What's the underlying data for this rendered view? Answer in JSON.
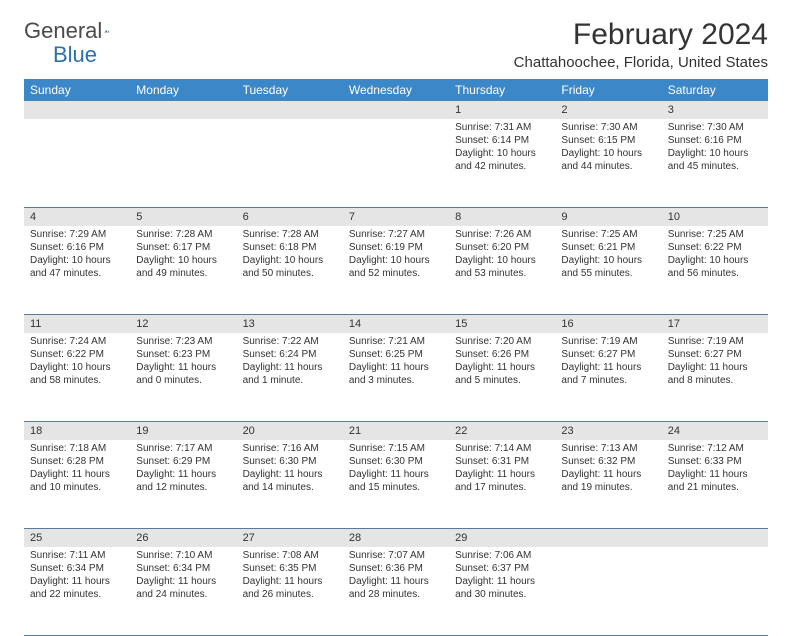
{
  "logo": {
    "text_general": "General",
    "text_blue": "Blue"
  },
  "title": "February 2024",
  "location": "Chattahoochee, Florida, United States",
  "colors": {
    "header_bg": "#3b87c8",
    "header_text": "#ffffff",
    "daynum_bg": "#e5e5e5",
    "week_border": "#5a7a9a",
    "body_text": "#333333",
    "logo_blue": "#2f6fa7"
  },
  "day_names": [
    "Sunday",
    "Monday",
    "Tuesday",
    "Wednesday",
    "Thursday",
    "Friday",
    "Saturday"
  ],
  "weeks": [
    [
      {
        "n": "",
        "lines": []
      },
      {
        "n": "",
        "lines": []
      },
      {
        "n": "",
        "lines": []
      },
      {
        "n": "",
        "lines": []
      },
      {
        "n": "1",
        "lines": [
          "Sunrise: 7:31 AM",
          "Sunset: 6:14 PM",
          "Daylight: 10 hours and 42 minutes."
        ]
      },
      {
        "n": "2",
        "lines": [
          "Sunrise: 7:30 AM",
          "Sunset: 6:15 PM",
          "Daylight: 10 hours and 44 minutes."
        ]
      },
      {
        "n": "3",
        "lines": [
          "Sunrise: 7:30 AM",
          "Sunset: 6:16 PM",
          "Daylight: 10 hours and 45 minutes."
        ]
      }
    ],
    [
      {
        "n": "4",
        "lines": [
          "Sunrise: 7:29 AM",
          "Sunset: 6:16 PM",
          "Daylight: 10 hours and 47 minutes."
        ]
      },
      {
        "n": "5",
        "lines": [
          "Sunrise: 7:28 AM",
          "Sunset: 6:17 PM",
          "Daylight: 10 hours and 49 minutes."
        ]
      },
      {
        "n": "6",
        "lines": [
          "Sunrise: 7:28 AM",
          "Sunset: 6:18 PM",
          "Daylight: 10 hours and 50 minutes."
        ]
      },
      {
        "n": "7",
        "lines": [
          "Sunrise: 7:27 AM",
          "Sunset: 6:19 PM",
          "Daylight: 10 hours and 52 minutes."
        ]
      },
      {
        "n": "8",
        "lines": [
          "Sunrise: 7:26 AM",
          "Sunset: 6:20 PM",
          "Daylight: 10 hours and 53 minutes."
        ]
      },
      {
        "n": "9",
        "lines": [
          "Sunrise: 7:25 AM",
          "Sunset: 6:21 PM",
          "Daylight: 10 hours and 55 minutes."
        ]
      },
      {
        "n": "10",
        "lines": [
          "Sunrise: 7:25 AM",
          "Sunset: 6:22 PM",
          "Daylight: 10 hours and 56 minutes."
        ]
      }
    ],
    [
      {
        "n": "11",
        "lines": [
          "Sunrise: 7:24 AM",
          "Sunset: 6:22 PM",
          "Daylight: 10 hours and 58 minutes."
        ]
      },
      {
        "n": "12",
        "lines": [
          "Sunrise: 7:23 AM",
          "Sunset: 6:23 PM",
          "Daylight: 11 hours and 0 minutes."
        ]
      },
      {
        "n": "13",
        "lines": [
          "Sunrise: 7:22 AM",
          "Sunset: 6:24 PM",
          "Daylight: 11 hours and 1 minute."
        ]
      },
      {
        "n": "14",
        "lines": [
          "Sunrise: 7:21 AM",
          "Sunset: 6:25 PM",
          "Daylight: 11 hours and 3 minutes."
        ]
      },
      {
        "n": "15",
        "lines": [
          "Sunrise: 7:20 AM",
          "Sunset: 6:26 PM",
          "Daylight: 11 hours and 5 minutes."
        ]
      },
      {
        "n": "16",
        "lines": [
          "Sunrise: 7:19 AM",
          "Sunset: 6:27 PM",
          "Daylight: 11 hours and 7 minutes."
        ]
      },
      {
        "n": "17",
        "lines": [
          "Sunrise: 7:19 AM",
          "Sunset: 6:27 PM",
          "Daylight: 11 hours and 8 minutes."
        ]
      }
    ],
    [
      {
        "n": "18",
        "lines": [
          "Sunrise: 7:18 AM",
          "Sunset: 6:28 PM",
          "Daylight: 11 hours and 10 minutes."
        ]
      },
      {
        "n": "19",
        "lines": [
          "Sunrise: 7:17 AM",
          "Sunset: 6:29 PM",
          "Daylight: 11 hours and 12 minutes."
        ]
      },
      {
        "n": "20",
        "lines": [
          "Sunrise: 7:16 AM",
          "Sunset: 6:30 PM",
          "Daylight: 11 hours and 14 minutes."
        ]
      },
      {
        "n": "21",
        "lines": [
          "Sunrise: 7:15 AM",
          "Sunset: 6:30 PM",
          "Daylight: 11 hours and 15 minutes."
        ]
      },
      {
        "n": "22",
        "lines": [
          "Sunrise: 7:14 AM",
          "Sunset: 6:31 PM",
          "Daylight: 11 hours and 17 minutes."
        ]
      },
      {
        "n": "23",
        "lines": [
          "Sunrise: 7:13 AM",
          "Sunset: 6:32 PM",
          "Daylight: 11 hours and 19 minutes."
        ]
      },
      {
        "n": "24",
        "lines": [
          "Sunrise: 7:12 AM",
          "Sunset: 6:33 PM",
          "Daylight: 11 hours and 21 minutes."
        ]
      }
    ],
    [
      {
        "n": "25",
        "lines": [
          "Sunrise: 7:11 AM",
          "Sunset: 6:34 PM",
          "Daylight: 11 hours and 22 minutes."
        ]
      },
      {
        "n": "26",
        "lines": [
          "Sunrise: 7:10 AM",
          "Sunset: 6:34 PM",
          "Daylight: 11 hours and 24 minutes."
        ]
      },
      {
        "n": "27",
        "lines": [
          "Sunrise: 7:08 AM",
          "Sunset: 6:35 PM",
          "Daylight: 11 hours and 26 minutes."
        ]
      },
      {
        "n": "28",
        "lines": [
          "Sunrise: 7:07 AM",
          "Sunset: 6:36 PM",
          "Daylight: 11 hours and 28 minutes."
        ]
      },
      {
        "n": "29",
        "lines": [
          "Sunrise: 7:06 AM",
          "Sunset: 6:37 PM",
          "Daylight: 11 hours and 30 minutes."
        ]
      },
      {
        "n": "",
        "lines": []
      },
      {
        "n": "",
        "lines": []
      }
    ]
  ]
}
